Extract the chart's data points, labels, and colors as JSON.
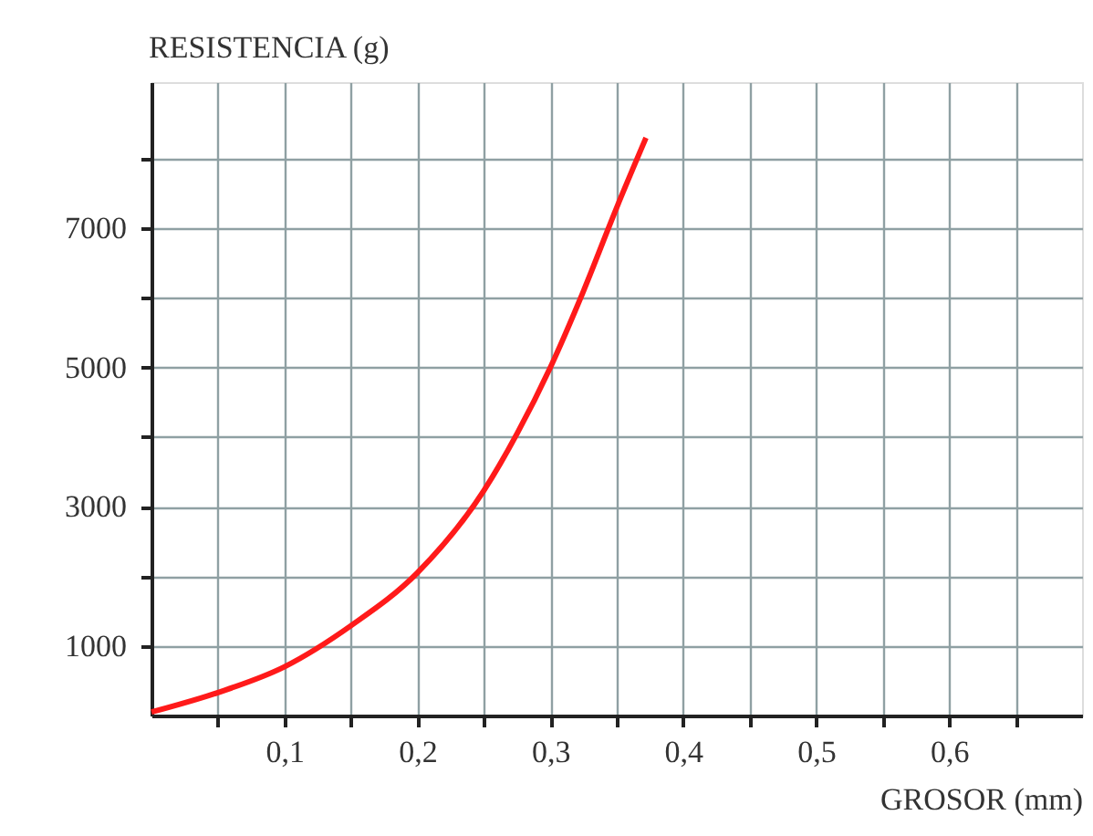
{
  "chart_data": {
    "type": "line",
    "xlabel": "GROSOR (mm)",
    "ylabel": "RESISTENCIA (g)",
    "x": [
      0,
      0.05,
      0.1,
      0.15,
      0.2,
      0.25,
      0.275,
      0.3,
      0.325,
      0.35,
      0.372
    ],
    "series": [
      {
        "color": "#ff1a1a",
        "values": [
          50,
          330,
          700,
          1290,
          2050,
          3230,
          4050,
          5000,
          6100,
          7300,
          8300
        ]
      }
    ],
    "xlim": [
      0,
      0.7
    ],
    "ylim": [
      0,
      9100
    ],
    "xticks": [
      {
        "value": 0.05,
        "label": null
      },
      {
        "value": 0.1,
        "label": "0,1"
      },
      {
        "value": 0.15,
        "label": null
      },
      {
        "value": 0.2,
        "label": "0,2"
      },
      {
        "value": 0.25,
        "label": null
      },
      {
        "value": 0.3,
        "label": "0,3"
      },
      {
        "value": 0.35,
        "label": null
      },
      {
        "value": 0.4,
        "label": "0,4"
      },
      {
        "value": 0.45,
        "label": null
      },
      {
        "value": 0.5,
        "label": "0,5"
      },
      {
        "value": 0.55,
        "label": null
      },
      {
        "value": 0.6,
        "label": "0,6"
      },
      {
        "value": 0.65,
        "label": null
      }
    ],
    "yticks": [
      1000,
      {
        "value": 2000,
        "label": null
      },
      3000,
      {
        "value": 4000,
        "label": null
      },
      5000,
      {
        "value": 6000,
        "label": null
      },
      7000,
      {
        "value": 8000,
        "label": null
      }
    ],
    "grid": true,
    "marker": "none",
    "line_style": "solid"
  }
}
